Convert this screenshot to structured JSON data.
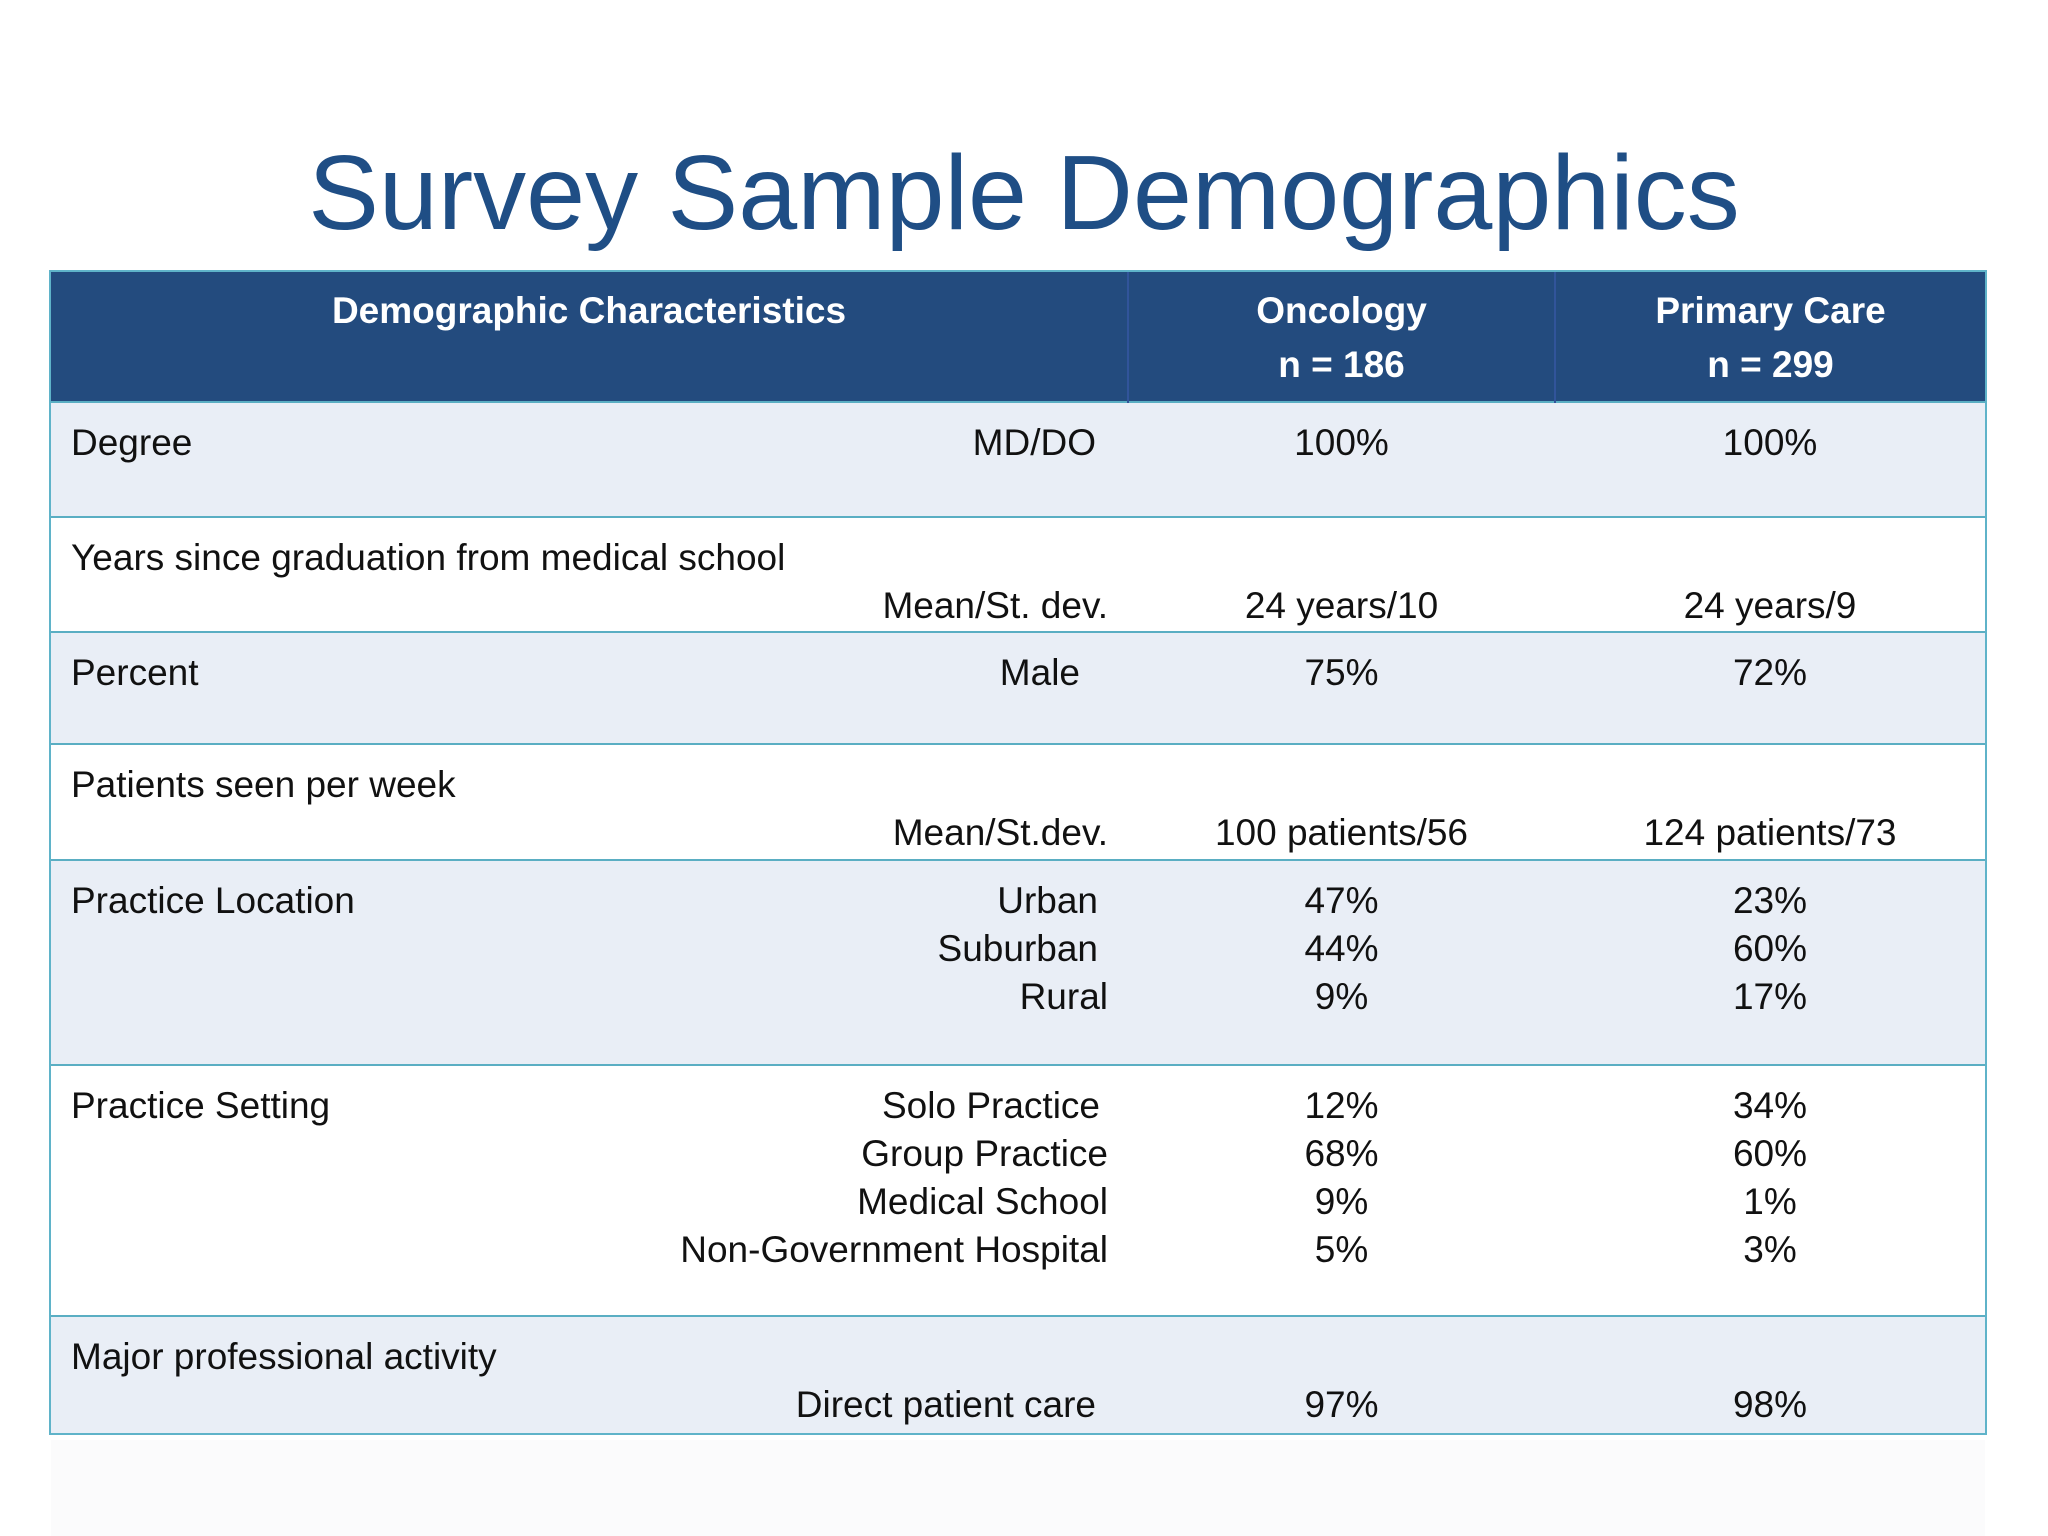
{
  "title": "Survey Sample Demographics",
  "header": {
    "col1": "Demographic Characteristics",
    "col2_line1": "Oncology",
    "col2_line2": "n = 186",
    "col3_line1": "Primary Care",
    "col3_line2": "n = 299"
  },
  "rows": {
    "degree": {
      "label": "Degree",
      "sub": "MD/DO",
      "onc": "100%",
      "pc": "100%"
    },
    "years": {
      "label": "Years since graduation from medical school",
      "sub": "Mean/St. dev.",
      "onc": "24 years/10",
      "pc": "24 years/9"
    },
    "percent": {
      "label": "Percent",
      "sub": "Male",
      "onc": "75%",
      "pc": "72%"
    },
    "patients": {
      "label": "Patients seen per week",
      "sub": "Mean/St.dev.",
      "onc": "100 patients/56",
      "pc": "124 patients/73"
    },
    "location": {
      "label": "Practice Location",
      "items": [
        {
          "sub": "Urban",
          "onc": "47%",
          "pc": "23%"
        },
        {
          "sub": "Suburban",
          "onc": "44%",
          "pc": "60%"
        },
        {
          "sub": "Rural",
          "onc": "9%",
          "pc": "17%"
        }
      ]
    },
    "setting": {
      "label": "Practice Setting",
      "items": [
        {
          "sub": "Solo Practice",
          "onc": "12%",
          "pc": "34%"
        },
        {
          "sub": "Group Practice",
          "onc": "68%",
          "pc": "60%"
        },
        {
          "sub": "Medical School",
          "onc": "9%",
          "pc": "1%"
        },
        {
          "sub": "Non-Government Hospital",
          "onc": "5%",
          "pc": "3%"
        }
      ]
    },
    "activity": {
      "label": "Major professional activity",
      "sub": "Direct patient care",
      "onc": "97%",
      "pc": "98%"
    }
  }
}
